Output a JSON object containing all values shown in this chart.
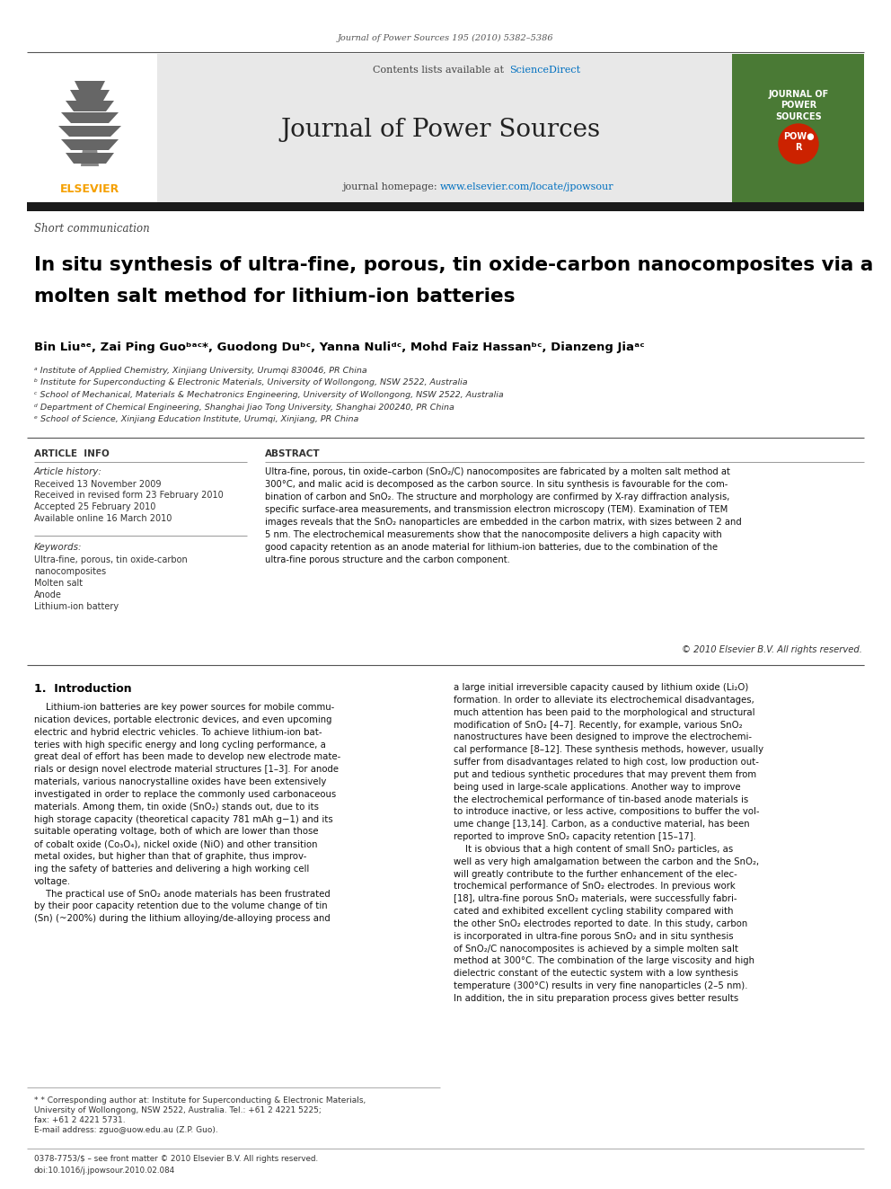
{
  "journal_ref": "Journal of Power Sources 195 (2010) 5382–5386",
  "contents_line": "Contents lists available at ",
  "sciencedirect": "ScienceDirect",
  "journal_name": "Journal of Power Sources",
  "homepage_prefix": "journal homepage: ",
  "homepage_url": "www.elsevier.com/locate/jpowsour",
  "section_label": "Short communication",
  "title_line1": "In situ synthesis of ultra-fine, porous, tin oxide-carbon nanocomposites via a",
  "title_line2": "molten salt method for lithium-ion batteries",
  "authors_line": "Bin Liuᵃᵉ, Zai Ping Guoᵇᵃᶜ*, Guodong Duᵇᶜ, Yanna Nuliᵈᶜ, Mohd Faiz Hassanᵇᶜ, Dianzeng Jiaᵃᶜ",
  "affil_a": "ᵃ Institute of Applied Chemistry, Xinjiang University, Urumqi 830046, PR China",
  "affil_b": "ᵇ Institute for Superconducting & Electronic Materials, University of Wollongong, NSW 2522, Australia",
  "affil_c": "ᶜ School of Mechanical, Materials & Mechatronics Engineering, University of Wollongong, NSW 2522, Australia",
  "affil_d": "ᵈ Department of Chemical Engineering, Shanghai Jiao Tong University, Shanghai 200240, PR China",
  "affil_e": "ᵉ School of Science, Xinjiang Education Institute, Urumqi, Xinjiang, PR China",
  "article_info_title": "ARTICLE  INFO",
  "abstract_title": "ABSTRACT",
  "article_history_label": "Article history:",
  "received": "Received 13 November 2009",
  "revised": "Received in revised form 23 February 2010",
  "accepted": "Accepted 25 February 2010",
  "available": "Available online 16 March 2010",
  "keywords_label": "Keywords:",
  "keyword1": "Ultra-fine, porous, tin oxide-carbon",
  "keyword2": "nanocomposites",
  "keyword3": "Molten salt",
  "keyword4": "Anode",
  "keyword5": "Lithium-ion battery",
  "abstract_text": "Ultra-fine, porous, tin oxide–carbon (SnO₂/C) nanocomposites are fabricated by a molten salt method at\n300°C, and malic acid is decomposed as the carbon source. In situ synthesis is favourable for the com-\nbination of carbon and SnO₂. The structure and morphology are confirmed by X-ray diffraction analysis,\nspecific surface-area measurements, and transmission electron microscopy (TEM). Examination of TEM\nimages reveals that the SnO₂ nanoparticles are embedded in the carbon matrix, with sizes between 2 and\n5 nm. The electrochemical measurements show that the nanocomposite delivers a high capacity with\ngood capacity retention as an anode material for lithium-ion batteries, due to the combination of the\nultra-fine porous structure and the carbon component.",
  "copyright": "© 2010 Elsevier B.V. All rights reserved.",
  "intro_title": "1.  Introduction",
  "intro_col1": "    Lithium-ion batteries are key power sources for mobile commu-\nnication devices, portable electronic devices, and even upcoming\nelectric and hybrid electric vehicles. To achieve lithium-ion bat-\nteries with high specific energy and long cycling performance, a\ngreat deal of effort has been made to develop new electrode mate-\nrials or design novel electrode material structures [1–3]. For anode\nmaterials, various nanocrystalline oxides have been extensively\ninvestigated in order to replace the commonly used carbonaceous\nmaterials. Among them, tin oxide (SnO₂) stands out, due to its\nhigh storage capacity (theoretical capacity 781 mAh g−1) and its\nsuitable operating voltage, both of which are lower than those\nof cobalt oxide (Co₃O₄), nickel oxide (NiO) and other transition\nmetal oxides, but higher than that of graphite, thus improv-\ning the safety of batteries and delivering a high working cell\nvoltage.\n    The practical use of SnO₂ anode materials has been frustrated\nby their poor capacity retention due to the volume change of tin\n(Sn) (~200%) during the lithium alloying/de-alloying process and",
  "intro_col2": "a large initial irreversible capacity caused by lithium oxide (Li₂O)\nformation. In order to alleviate its electrochemical disadvantages,\nmuch attention has been paid to the morphological and structural\nmodification of SnO₂ [4–7]. Recently, for example, various SnO₂\nnanostructures have been designed to improve the electrochemi-\ncal performance [8–12]. These synthesis methods, however, usually\nsuffer from disadvantages related to high cost, low production out-\nput and tedious synthetic procedures that may prevent them from\nbeing used in large-scale applications. Another way to improve\nthe electrochemical performance of tin-based anode materials is\nto introduce inactive, or less active, compositions to buffer the vol-\nume change [13,14]. Carbon, as a conductive material, has been\nreported to improve SnO₂ capacity retention [15–17].\n    It is obvious that a high content of small SnO₂ particles, as\nwell as very high amalgamation between the carbon and the SnO₂,\nwill greatly contribute to the further enhancement of the elec-\ntrochemical performance of SnO₂ electrodes. In previous work\n[18], ultra-fine porous SnO₂ materials, were successfully fabri-\ncated and exhibited excellent cycling stability compared with\nthe other SnO₂ electrodes reported to date. In this study, carbon\nis incorporated in ultra-fine porous SnO₂ and in situ synthesis\nof SnO₂/C nanocomposites is achieved by a simple molten salt\nmethod at 300°C. The combination of the large viscosity and high\ndielectric constant of the eutectic system with a low synthesis\ntemperature (300°C) results in very fine nanoparticles (2–5 nm).\nIn addition, the in situ preparation process gives better results",
  "footer1": "* Corresponding author at: Institute for Superconducting & Electronic Materials,",
  "footer2": "University of Wollongong, NSW 2522, Australia. Tel.: +61 2 4221 5225;",
  "footer3": "fax: +61 2 4221 5731.",
  "footer4": "E-mail address: zguo@uow.edu.au (Z.P. Guo).",
  "footer_line1": "0378-7753/$ – see front matter © 2010 Elsevier B.V. All rights reserved.",
  "footer_line2": "doi:10.1016/j.jpowsour.2010.02.084",
  "bg_color": "#ffffff",
  "header_bg": "#e8e8e8",
  "dark_bar_color": "#1a1a1a",
  "elsevier_color": "#f5a000",
  "sd_blue": "#0070c0",
  "url_blue": "#0070c0",
  "text_dark": "#000000",
  "text_mid": "#333333",
  "cover_green": "#4a7a35",
  "cover_red": "#cc2200"
}
